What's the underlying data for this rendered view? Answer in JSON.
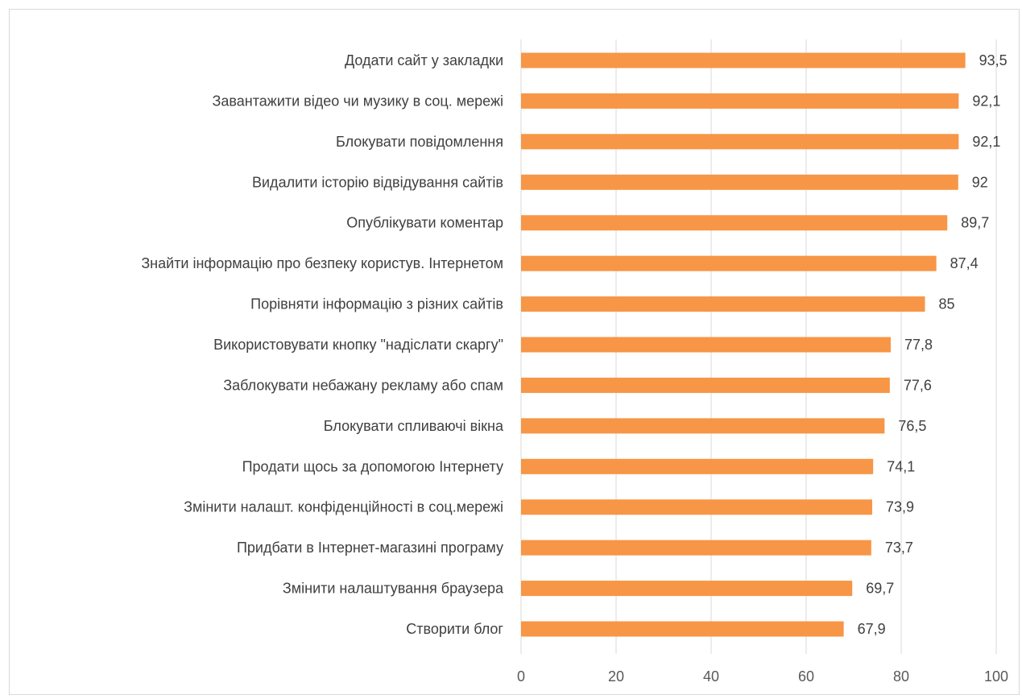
{
  "chart_data": {
    "type": "bar",
    "orientation": "horizontal",
    "categories": [
      "Додати сайт у закладки",
      "Завантажити відео чи музику в соц. мережі",
      "Блокувати повідомлення",
      "Видалити історію відвідування сайтів",
      "Опублікувати коментар",
      "Знайти інформацію про безпеку користув. Інтернетом",
      "Порівняти інформацію з різних сайтів",
      "Використовувати кнопку \"надіслати скаргу\"",
      "Заблокувати небажану рекламу або спам",
      "Блокувати спливаючі вікна",
      "Продати щось за допомогою Інтернету",
      "Змінити налашт. конфіденційності в соц.мережі",
      "Придбати в Інтернет-магазині програму",
      "Змінити налаштування браузера",
      "Створити блог"
    ],
    "values": [
      93.5,
      92.1,
      92.1,
      92,
      89.7,
      87.4,
      85,
      77.8,
      77.6,
      76.5,
      74.1,
      73.9,
      73.7,
      69.7,
      67.9
    ],
    "value_labels": [
      "93,5",
      "92,1",
      "92,1",
      "92",
      "89,7",
      "87,4",
      "85",
      "77,8",
      "77,6",
      "76,5",
      "74,1",
      "73,9",
      "73,7",
      "69,7",
      "67,9"
    ],
    "xlim": [
      0,
      100
    ],
    "x_ticks": [
      0,
      20,
      40,
      60,
      80,
      100
    ],
    "x_tick_labels": [
      "0",
      "20",
      "40",
      "60",
      "80",
      "100"
    ],
    "grid": "vertical",
    "legend": "none",
    "title": "",
    "xlabel": "",
    "ylabel": "",
    "colors": {
      "bar": "#F79646",
      "grid": "#d9d9d9",
      "text": "#404040"
    }
  }
}
